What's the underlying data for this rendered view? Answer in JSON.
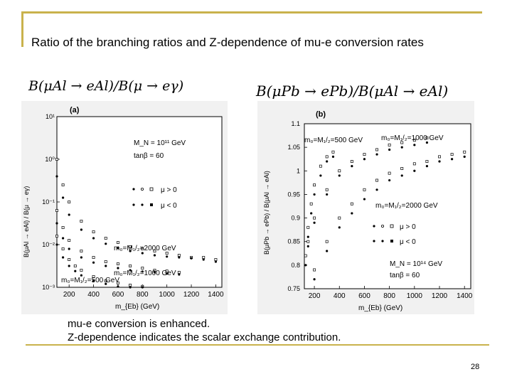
{
  "slide": {
    "title": "Ratio of the branching ratios and Z-dependence of mu-e conversion rates",
    "formula_left": "B(μAl → eAl)/B(μ → eγ)",
    "formula_right": "B(μPb → ePb)/B(μAl → eAl)",
    "caption_line1": "mu-e conversion is enhanced.",
    "caption_line2": "Z-dependence indicates the scalar exchange contribution.",
    "page_number": "28"
  },
  "colors": {
    "accent": "#c9b24c",
    "frame": "#f1f1f1",
    "marker": "#000000"
  },
  "chart_data": [
    {
      "type": "scatter",
      "panel_label": "(a)",
      "xlabel": "m_{Eb} (GeV)",
      "ylabel": "B(μAl → eAl) / B(μ → eγ)",
      "xlim": [
        100,
        1450
      ],
      "ylim_log10": [
        -3,
        1
      ],
      "x_ticks": [
        "200",
        "400",
        "600",
        "800",
        "1000",
        "1200",
        "1400"
      ],
      "y_ticks": [
        "10⁻³",
        "10⁻²",
        "10⁻¹",
        "10⁰",
        "10¹"
      ],
      "annotations": {
        "mn": "M_N = 10¹¹ GeV",
        "tanb": "tanβ = 60",
        "legend_pos": "μ > 0",
        "legend_neg": "μ < 0",
        "curve_2000": "m₀=M₁/₂=2000 GeV",
        "curve_1000": "m₀=M₁/₂=1000 GeV",
        "curve_500": "m₀=M₁/₂=500 GeV"
      },
      "series": [
        {
          "marker": "open",
          "curve": "2000",
          "x": [
            100,
            150,
            200,
            300,
            400,
            500,
            600,
            700,
            800,
            900,
            1000,
            1100,
            1200,
            1300,
            1400
          ],
          "y_log10": [
            0,
            -0.6,
            -1.0,
            -1.45,
            -1.7,
            -1.85,
            -1.95,
            -2.05,
            -2.1,
            -2.15,
            -2.2,
            -2.25,
            -2.3,
            -2.3,
            -2.35
          ]
        },
        {
          "marker": "filled",
          "curve": "2000",
          "x": [
            100,
            150,
            200,
            300,
            400,
            500,
            600,
            700,
            800,
            900,
            1000,
            1100,
            1200,
            1300,
            1400
          ],
          "y_log10": [
            -0.4,
            -0.9,
            -1.3,
            -1.65,
            -1.85,
            -1.98,
            -2.08,
            -2.15,
            -2.2,
            -2.25,
            -2.28,
            -2.3,
            -2.32,
            -2.35,
            -2.4
          ]
        },
        {
          "marker": "open",
          "curve": "1000",
          "x": [
            100,
            150,
            200,
            300,
            400,
            500,
            600,
            700,
            800,
            900,
            1000,
            1100
          ],
          "y_log10": [
            -1.2,
            -1.6,
            -1.9,
            -2.15,
            -2.3,
            -2.4,
            -2.45,
            -2.5,
            -2.55,
            -2.6,
            -2.62,
            -2.65
          ]
        },
        {
          "marker": "filled",
          "curve": "1000",
          "x": [
            100,
            150,
            200,
            300,
            400,
            500,
            600,
            700,
            800,
            900,
            1000,
            1100
          ],
          "y_log10": [
            -1.5,
            -1.85,
            -2.1,
            -2.3,
            -2.42,
            -2.5,
            -2.55,
            -2.6,
            -2.63,
            -2.65,
            -2.68,
            -2.7
          ]
        },
        {
          "marker": "open",
          "curve": "500",
          "x": [
            100,
            150,
            200,
            250,
            300,
            400,
            500,
            600,
            700,
            800
          ],
          "y_log10": [
            -1.8,
            -2.1,
            -2.35,
            -2.5,
            -2.6,
            -2.75,
            -2.85,
            -2.9,
            -2.95,
            -2.98
          ]
        },
        {
          "marker": "filled",
          "curve": "500",
          "x": [
            100,
            150,
            200,
            250,
            300,
            400,
            500,
            600,
            700,
            800
          ],
          "y_log10": [
            -2.0,
            -2.3,
            -2.5,
            -2.62,
            -2.72,
            -2.85,
            -2.92,
            -2.98,
            -3.0,
            -3.0
          ]
        }
      ]
    },
    {
      "type": "scatter",
      "panel_label": "(b)",
      "xlabel": "m_{Eb} (GeV)",
      "ylabel": "B(μPb → ePb) / B(μAl → eAl)",
      "xlim": [
        120,
        1450
      ],
      "ylim": [
        0.75,
        1.1
      ],
      "x_ticks": [
        "200",
        "400",
        "600",
        "800",
        "1000",
        "1200",
        "1400"
      ],
      "y_ticks": [
        "0.75",
        "0.8",
        "0.85",
        "0.9",
        "0.95",
        "1",
        "1.05",
        "1.1"
      ],
      "annotations": {
        "curve_500": "m₀=M₁/₂=500 GeV",
        "curve_1000": "m₀=M₁/₂=1000 GeV",
        "curve_2000": "m₀=M₁/₂=2000 GeV",
        "legend_pos": "μ > 0",
        "legend_neg": "μ < 0",
        "mn": "M_N = 10¹⁴ GeV",
        "tanb": "tanβ = 60"
      },
      "series": [
        {
          "marker": "open",
          "curve": "500",
          "x": [
            130,
            150,
            175,
            200,
            250,
            300,
            350
          ],
          "y": [
            0.82,
            0.88,
            0.93,
            0.97,
            1.01,
            1.03,
            1.04
          ]
        },
        {
          "marker": "filled",
          "curve": "500",
          "x": [
            130,
            150,
            175,
            200,
            250,
            300,
            350
          ],
          "y": [
            0.8,
            0.86,
            0.91,
            0.95,
            0.99,
            1.02,
            1.03
          ]
        },
        {
          "marker": "open",
          "curve": "1000",
          "x": [
            150,
            200,
            300,
            400,
            500,
            600,
            700,
            800,
            900,
            1000,
            1100
          ],
          "y": [
            0.85,
            0.9,
            0.96,
            1.0,
            1.02,
            1.035,
            1.045,
            1.055,
            1.06,
            1.065,
            1.07
          ]
        },
        {
          "marker": "filled",
          "curve": "1000",
          "x": [
            150,
            200,
            300,
            400,
            500,
            600,
            700,
            800,
            900,
            1000,
            1100
          ],
          "y": [
            0.84,
            0.89,
            0.95,
            0.99,
            1.01,
            1.025,
            1.035,
            1.045,
            1.05,
            1.055,
            1.06
          ]
        },
        {
          "marker": "open",
          "curve": "2000",
          "x": [
            200,
            300,
            400,
            500,
            600,
            700,
            800,
            900,
            1000,
            1100,
            1200,
            1300,
            1400
          ],
          "y": [
            0.79,
            0.85,
            0.9,
            0.93,
            0.96,
            0.98,
            0.995,
            1.005,
            1.015,
            1.02,
            1.03,
            1.035,
            1.04
          ]
        },
        {
          "marker": "filled",
          "curve": "2000",
          "x": [
            200,
            300,
            400,
            500,
            600,
            700,
            800,
            900,
            1000,
            1100,
            1200,
            1300,
            1400
          ],
          "y": [
            0.77,
            0.83,
            0.88,
            0.91,
            0.94,
            0.96,
            0.98,
            0.99,
            1.0,
            1.01,
            1.02,
            1.025,
            1.03
          ]
        }
      ]
    }
  ]
}
